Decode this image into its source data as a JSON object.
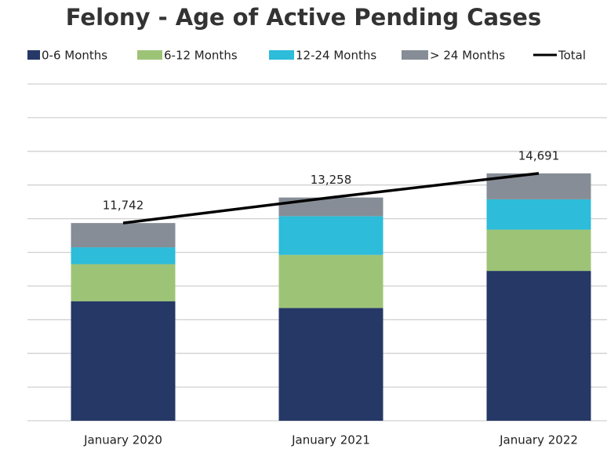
{
  "chart_data": {
    "type": "stacked_bar_line",
    "title": "Felony - Age of Active Pending Cases",
    "categories": [
      "January 2020",
      "January 2021",
      "January 2022"
    ],
    "series": [
      {
        "name": "0-6 Months",
        "color": "#253866",
        "values": [
          7100,
          6700,
          8900
        ]
      },
      {
        "name": "6-12 Months",
        "color": "#9dc476",
        "values": [
          2200,
          3150,
          2450
        ]
      },
      {
        "name": "12-24 Months",
        "color": "#2dbcd9",
        "values": [
          1000,
          2300,
          1800
        ]
      },
      {
        "name": "> 24 Months",
        "color": "#878d96",
        "values": [
          1442,
          1108,
          1541
        ]
      },
      {
        "name": "Total",
        "color": "#000000",
        "type": "line",
        "values": [
          11742,
          13258,
          14691
        ],
        "value_labels": [
          "11,742",
          "13,258",
          "14,691"
        ]
      }
    ],
    "ylim": [
      0,
      20000
    ],
    "yticks": [
      0,
      2000,
      4000,
      6000,
      8000,
      10000,
      12000,
      14000,
      16000,
      18000,
      20000
    ],
    "grid": true
  }
}
